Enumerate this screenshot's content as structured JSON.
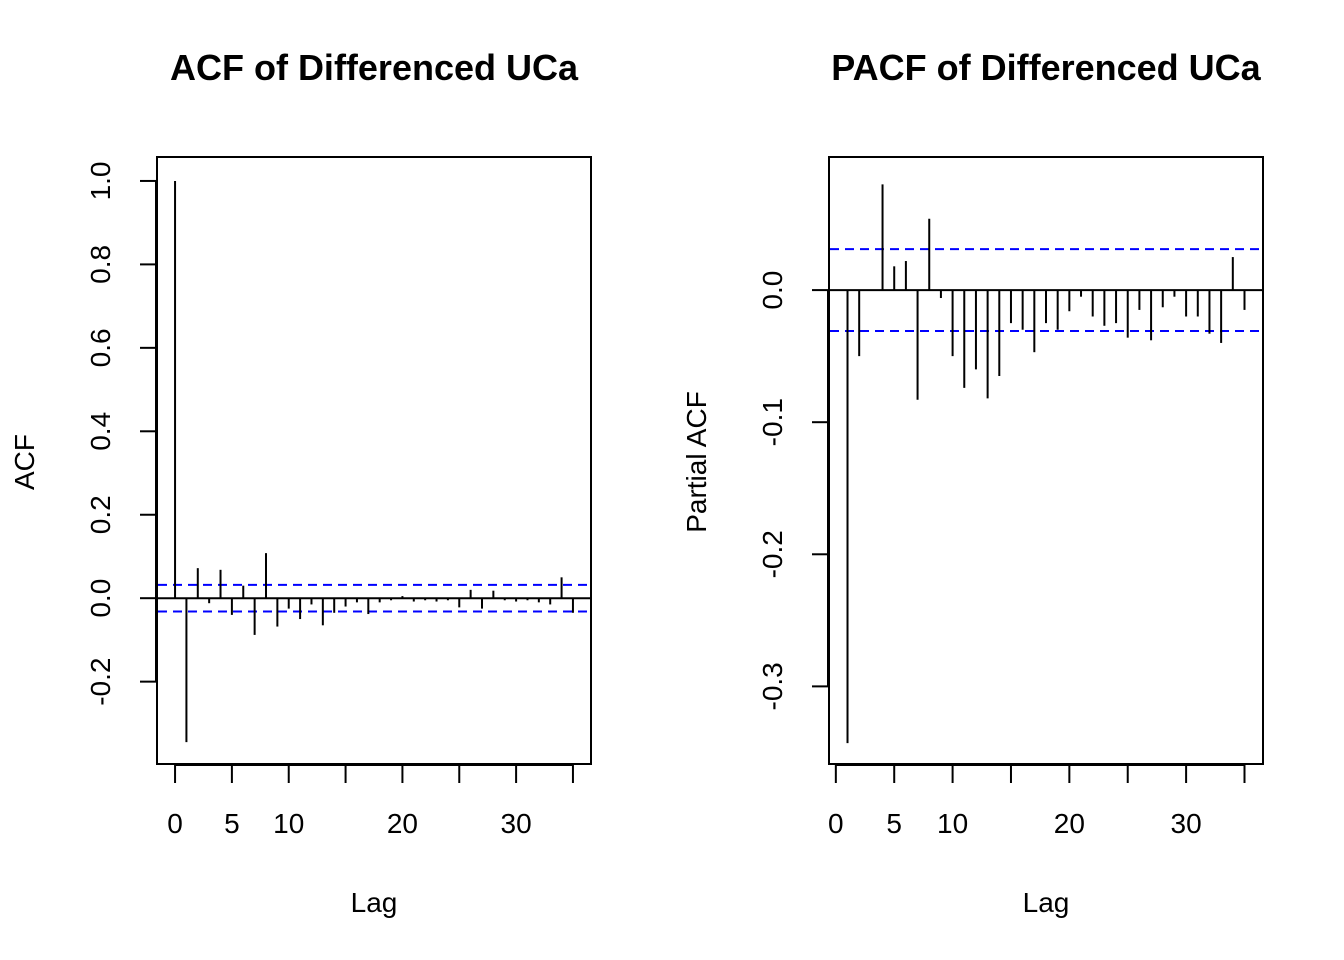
{
  "colors": {
    "axis": "#000000",
    "bars": "#000000",
    "ci": "#0000ff",
    "background": "#ffffff"
  },
  "chart_data": [
    {
      "type": "bar",
      "subtype": "acf-stem",
      "title": "ACF of Differenced UCa",
      "xlabel": "Lag",
      "ylabel": "ACF",
      "xlim": [
        -1.5,
        36.5
      ],
      "ylim": [
        -0.395,
        1.055
      ],
      "x_ticks": [
        0,
        5,
        10,
        15,
        20,
        25,
        30,
        35
      ],
      "x_tick_labels": [
        "0",
        "5",
        "10",
        "",
        "20",
        "",
        "30",
        ""
      ],
      "y_ticks": [
        -0.2,
        0,
        0.2,
        0.4,
        0.6,
        0.8,
        1.0
      ],
      "y_tick_labels": [
        "-0.2",
        "0.0",
        "0.2",
        "0.4",
        "0.6",
        "0.8",
        "1.0"
      ],
      "zero_line": true,
      "ci_bounds": [
        0.032,
        -0.032
      ],
      "lags": [
        0,
        1,
        2,
        3,
        4,
        5,
        6,
        7,
        8,
        9,
        10,
        11,
        12,
        13,
        14,
        15,
        16,
        17,
        18,
        19,
        20,
        21,
        22,
        23,
        24,
        25,
        26,
        27,
        28,
        29,
        30,
        31,
        32,
        33,
        34,
        35
      ],
      "values": [
        1.0,
        -0.345,
        0.072,
        -0.012,
        0.068,
        -0.04,
        0.03,
        -0.088,
        0.108,
        -0.068,
        -0.025,
        -0.05,
        -0.015,
        -0.065,
        -0.035,
        -0.02,
        -0.01,
        -0.038,
        -0.01,
        -0.005,
        0.005,
        -0.008,
        -0.005,
        -0.008,
        -0.005,
        -0.022,
        0.02,
        -0.025,
        0.018,
        -0.005,
        -0.008,
        -0.005,
        -0.01,
        -0.015,
        0.05,
        -0.035
      ],
      "grid": false,
      "legend": "none"
    },
    {
      "type": "bar",
      "subtype": "pacf-stem",
      "title": "PACF of Differenced UCa",
      "xlabel": "Lag",
      "ylabel": "Partial ACF",
      "xlim": [
        -0.5,
        36.5
      ],
      "ylim": [
        -0.358,
        0.1
      ],
      "x_ticks": [
        0,
        5,
        10,
        15,
        20,
        25,
        30,
        35
      ],
      "x_tick_labels": [
        "0",
        "5",
        "10",
        "",
        "20",
        "",
        "30",
        ""
      ],
      "y_ticks": [
        -0.3,
        -0.2,
        -0.1,
        0.0
      ],
      "y_tick_labels": [
        "-0.3",
        "-0.2",
        "-0.1",
        "0.0"
      ],
      "zero_line": true,
      "ci_bounds": [
        0.031,
        -0.031
      ],
      "lags": [
        1,
        2,
        3,
        4,
        5,
        6,
        7,
        8,
        9,
        10,
        11,
        12,
        13,
        14,
        15,
        16,
        17,
        18,
        19,
        20,
        21,
        22,
        23,
        24,
        25,
        26,
        27,
        28,
        29,
        30,
        31,
        32,
        33,
        34,
        35
      ],
      "values": [
        -0.343,
        -0.05,
        0.0,
        0.08,
        0.018,
        0.022,
        -0.083,
        0.054,
        -0.006,
        -0.05,
        -0.074,
        -0.06,
        -0.082,
        -0.065,
        -0.025,
        -0.03,
        -0.047,
        -0.025,
        -0.03,
        -0.016,
        -0.005,
        -0.02,
        -0.027,
        -0.025,
        -0.036,
        -0.015,
        -0.038,
        -0.013,
        -0.005,
        -0.02,
        -0.02,
        -0.033,
        -0.04,
        0.025,
        -0.015
      ],
      "grid": false,
      "legend": "none"
    }
  ]
}
